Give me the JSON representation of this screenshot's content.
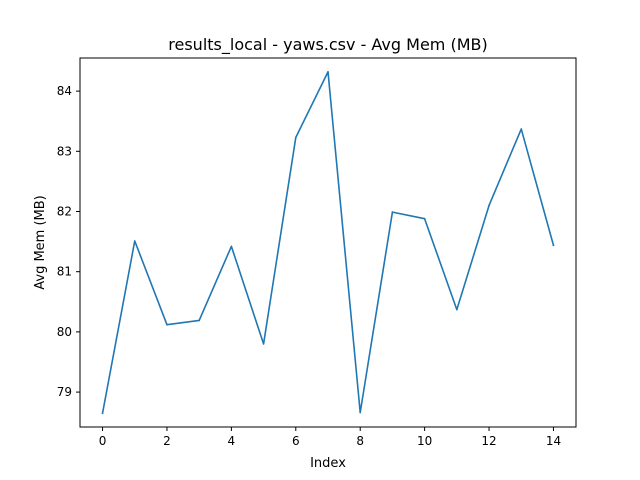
{
  "chart_data": {
    "type": "line",
    "title": "results_local - yaws.csv - Avg Mem (MB)",
    "xlabel": "Index",
    "ylabel": "Avg Mem (MB)",
    "x": [
      0,
      1,
      2,
      3,
      4,
      5,
      6,
      7,
      8,
      9,
      10,
      11,
      12,
      13,
      14
    ],
    "series": [
      {
        "color": "#1f77b4",
        "values": [
          78.65,
          81.51,
          80.12,
          80.19,
          81.42,
          79.8,
          83.23,
          84.32,
          78.66,
          81.99,
          81.88,
          80.37,
          82.1,
          83.37,
          81.44
        ]
      }
    ],
    "xticks": [
      0,
      2,
      4,
      6,
      8,
      10,
      12,
      14
    ],
    "yticks": [
      79,
      80,
      81,
      82,
      83,
      84
    ],
    "xlim": [
      -0.7,
      14.7
    ],
    "ylim": [
      78.42,
      84.55
    ],
    "grid": false,
    "legend": "none"
  }
}
